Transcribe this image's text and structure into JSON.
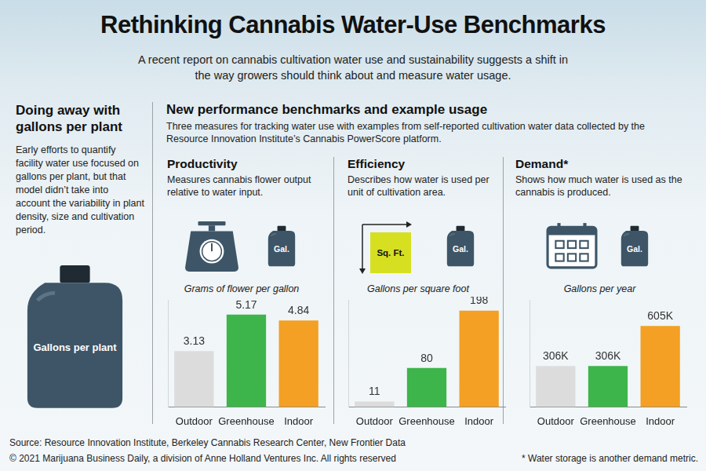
{
  "title": "Rethinking Cannabis Water-Use Benchmarks",
  "subtitle": "A recent report on cannabis cultivation water use and sustainability suggests a shift in the way growers should think about and measure water usage.",
  "sidebar": {
    "heading": "Doing away with gallons per plant",
    "text": "Early efforts to quantify facility water use focused on gallons per plant, but that model didn’t take into account the variability in plant density, size and cultivation period.",
    "icon_label": "Gallons per plant"
  },
  "section": {
    "heading": "New performance benchmarks and example usage",
    "text": "Three measures for tracking water use with examples from self-reported cultivation water data collected by the Resource Innovation Institute’s Cannabis PowerScore platform."
  },
  "chart_data": [
    {
      "type": "bar",
      "title": "Productivity",
      "subtitle": "Measures cannabis flower output relative to water input.",
      "icon_labels": [
        "Gal."
      ],
      "ylabel": "Grams of flower per gallon",
      "categories": [
        "Outdoor",
        "Greenhouse",
        "Indoor"
      ],
      "values": [
        3.13,
        5.17,
        4.84
      ],
      "colors": [
        "#dcdcdc",
        "#3db54a",
        "#f3a024"
      ],
      "ylim": [
        0,
        6
      ],
      "grid": false,
      "tick_labels": "x",
      "data_labels": true
    },
    {
      "type": "bar",
      "title": "Efficiency",
      "subtitle": "Describes how water is used per unit of cultivation area.",
      "icon_labels": [
        "Sq. Ft.",
        "Gal."
      ],
      "ylabel": "Gallons per square foot",
      "categories": [
        "Outdoor",
        "Greenhouse",
        "Indoor"
      ],
      "values": [
        11,
        80,
        198
      ],
      "colors": [
        "#dcdcdc",
        "#3db54a",
        "#f3a024"
      ],
      "ylim": [
        0,
        220
      ],
      "grid": false,
      "tick_labels": "x",
      "data_labels": true
    },
    {
      "type": "bar",
      "title": "Demand*",
      "subtitle": "Shows how much water is used as the cannabis is produced.",
      "icon_labels": [
        "Gal."
      ],
      "ylabel": "Gallons per year",
      "categories": [
        "Outdoor",
        "Greenhouse",
        "Indoor"
      ],
      "values": [
        306000,
        306000,
        605000
      ],
      "value_labels": [
        "306K",
        "306K",
        "605K"
      ],
      "colors": [
        "#dcdcdc",
        "#3db54a",
        "#f3a024"
      ],
      "ylim": [
        0,
        800000
      ],
      "grid": false,
      "tick_labels": "x",
      "data_labels": true
    }
  ],
  "footer": {
    "source": "Source: Resource Innovation Institute, Berkeley Cannabis Research Center, New Frontier Data",
    "copyright": "© 2021 Marijuana Business Daily, a division of Anne Holland Ventures Inc. All rights reserved",
    "note": "* Water storage is another demand metric."
  }
}
